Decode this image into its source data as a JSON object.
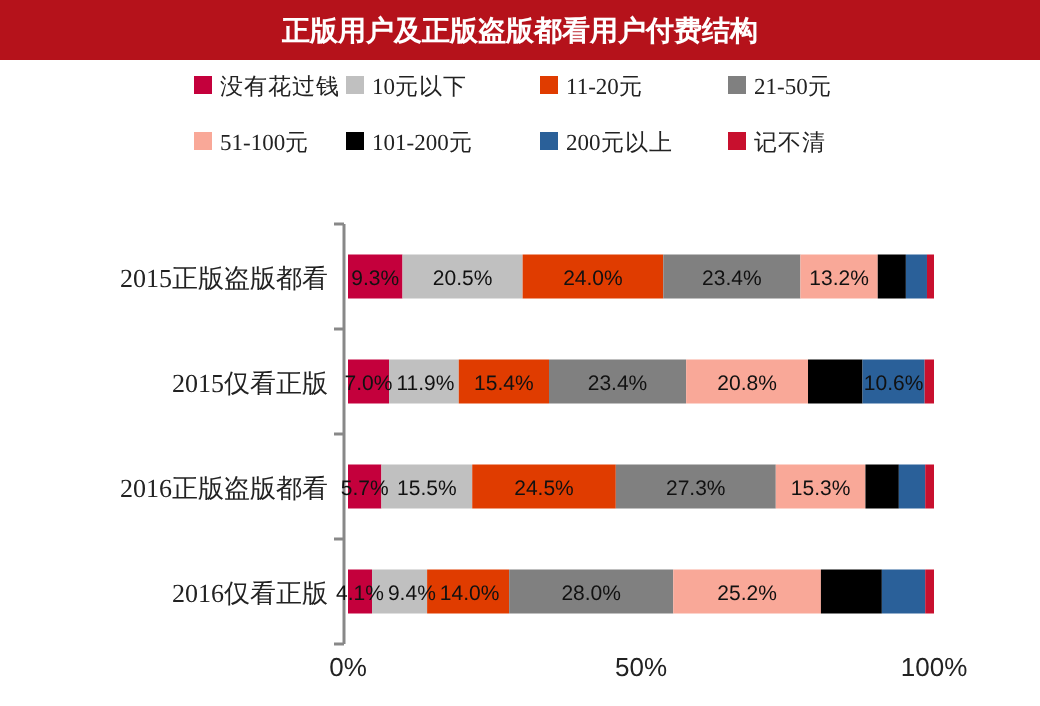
{
  "chart_data": {
    "type": "bar",
    "orientation": "horizontal",
    "stacked": true,
    "title": "正版用户及正版盗版都看用户付费结构",
    "categories": [
      "2015正版盗版都看",
      "2015仅看正版",
      "2016正版盗版都看",
      "2016仅看正版"
    ],
    "series": [
      {
        "name": "没有花过钱",
        "color": "#c4003c",
        "values": [
          9.3,
          7.0,
          5.7,
          4.1
        ],
        "value_labels": [
          "9.3%",
          "7.0%",
          "5.7%",
          "4.1%"
        ]
      },
      {
        "name": "10元以下",
        "color": "#c0c0c0",
        "values": [
          20.5,
          11.9,
          15.5,
          9.4
        ],
        "value_labels": [
          "20.5%",
          "11.9%",
          "15.5%",
          "9.4%"
        ]
      },
      {
        "name": "11-20元",
        "color": "#e03c00",
        "values": [
          24.0,
          15.4,
          24.5,
          14.0
        ],
        "value_labels": [
          "24.0%",
          "15.4%",
          "24.5%",
          "14.0%"
        ]
      },
      {
        "name": "21-50元",
        "color": "#808080",
        "values": [
          23.4,
          23.4,
          27.3,
          28.0
        ],
        "value_labels": [
          "23.4%",
          "23.4%",
          "27.3%",
          "28.0%"
        ]
      },
      {
        "name": "51-100元",
        "color": "#f9a898",
        "values": [
          13.2,
          20.8,
          15.3,
          25.2
        ],
        "value_labels": [
          "13.2%",
          "20.8%",
          "15.3%",
          "25.2%"
        ]
      },
      {
        "name": "101-200元",
        "color": "#000000",
        "values": [
          4.8,
          9.3,
          5.7,
          10.4
        ],
        "value_labels": [
          null,
          null,
          null,
          null
        ]
      },
      {
        "name": "200元以上",
        "color": "#2a6099",
        "values": [
          3.6,
          10.6,
          4.5,
          7.4
        ],
        "value_labels": [
          null,
          "10.6%",
          null,
          null
        ]
      },
      {
        "name": "记不清",
        "color": "#c8102e",
        "values": [
          1.2,
          1.6,
          1.5,
          1.5
        ],
        "value_labels": [
          null,
          null,
          null,
          null
        ]
      }
    ],
    "xlim": [
      0,
      100
    ],
    "xticks": [
      {
        "value": 0,
        "label": "0%"
      },
      {
        "value": 50,
        "label": "50%"
      },
      {
        "value": 100,
        "label": "100%"
      }
    ],
    "legend": "top",
    "grid": false
  }
}
